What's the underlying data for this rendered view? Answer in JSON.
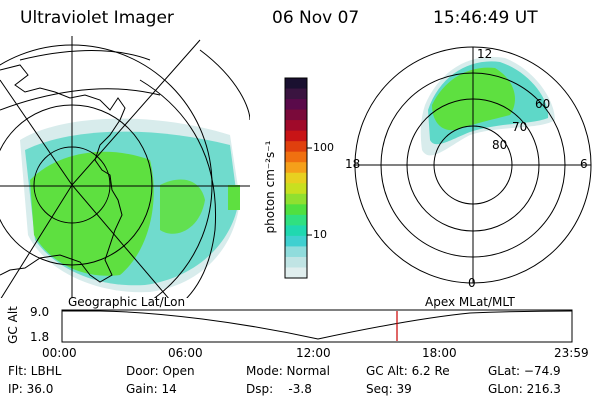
{
  "header": {
    "instrument": "Ultraviolet Imager",
    "date": "06 Nov 07",
    "time": "15:46:49 UT"
  },
  "geo_panel": {
    "label": "Geographic Lat/Lon"
  },
  "polar_panel": {
    "label": "Apex MLat/MLT",
    "lat_labels": [
      "80",
      "70",
      "60"
    ],
    "mlt_labels": {
      "top": "12",
      "left": "18",
      "right": "6",
      "bottom": "0"
    }
  },
  "colorbar": {
    "unit_label": "photon cm⁻²s⁻¹",
    "ticks": [
      "100",
      "10"
    ],
    "colors": [
      "#1a1030",
      "#3a1440",
      "#5a0a4a",
      "#7a0a3a",
      "#a00a2a",
      "#c81416",
      "#e0400e",
      "#f07010",
      "#f5a01a",
      "#e8d020",
      "#c8e020",
      "#90e030",
      "#50e040",
      "#30e080",
      "#20d8b0",
      "#40d0d0",
      "#90dcdc",
      "#c0e4e4",
      "#e0eeee"
    ]
  },
  "altitude_plot": {
    "ylabel": "GC Alt",
    "yticks": [
      "9.0",
      "1.8"
    ],
    "xticks": [
      "00:00",
      "06:00",
      "12:00",
      "18:00",
      "23:59"
    ],
    "marker_time": "15:46",
    "marker_color": "#cc0000"
  },
  "footer": {
    "flt": "Flt: LBHL",
    "ip": "IP: 36.0",
    "door": "Door: Open",
    "gain": "Gain: 14",
    "mode": "Mode: Normal",
    "dsp": "Dsp:    -3.8",
    "gc_alt": "GC Alt: 6.2 Re",
    "seq": "Seq: 39",
    "glat": "GLat: −74.9",
    "glon": "GLon: 216.3"
  }
}
